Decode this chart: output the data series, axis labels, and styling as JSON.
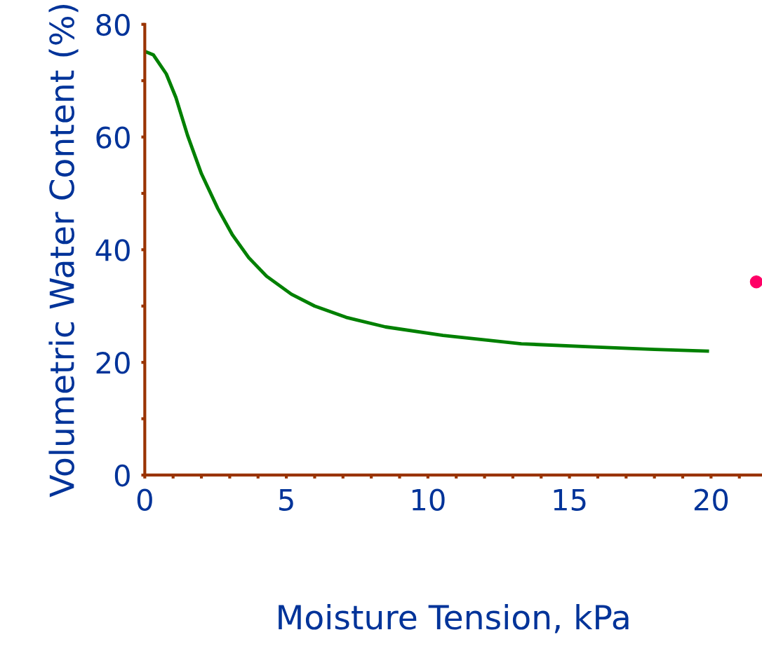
{
  "chart_data": {
    "type": "line",
    "xlabel": "Moisture Tension, kPa",
    "ylabel": "Volumetric Water Content (%)",
    "xlim": [
      0,
      21.8
    ],
    "ylim": [
      0,
      80
    ],
    "xticks": [
      0,
      {
        "value": 1,
        "label": null
      },
      {
        "value": 2,
        "label": null
      },
      {
        "value": 3,
        "label": null
      },
      {
        "value": 4,
        "label": null
      },
      5,
      {
        "value": 6,
        "label": null
      },
      {
        "value": 7,
        "label": null
      },
      {
        "value": 8,
        "label": null
      },
      {
        "value": 9,
        "label": null
      },
      10,
      {
        "value": 11,
        "label": null
      },
      {
        "value": 12,
        "label": null
      },
      {
        "value": 13,
        "label": null
      },
      {
        "value": 14,
        "label": null
      },
      15,
      {
        "value": 16,
        "label": null
      },
      {
        "value": 17,
        "label": null
      },
      {
        "value": 18,
        "label": null
      },
      {
        "value": 19,
        "label": null
      },
      20,
      {
        "value": 21,
        "label": null
      }
    ],
    "yticks": [
      0,
      {
        "value": 10,
        "label": null
      },
      20,
      {
        "value": 30,
        "label": null
      },
      40,
      {
        "value": 50,
        "label": null
      },
      60,
      {
        "value": 70,
        "label": null
      },
      80
    ],
    "grid": false,
    "legend": false,
    "series": [
      {
        "color": "#008000",
        "x": [
          0,
          0.3,
          0.76,
          1.1,
          1.51,
          2.0,
          2.58,
          3.1,
          3.67,
          4.3,
          5.18,
          6.0,
          7.11,
          8.5,
          10.53,
          13.3,
          16.0,
          18.0,
          19.93
        ],
        "values": [
          75.2,
          74.6,
          71.2,
          67.0,
          60.3,
          53.5,
          47.3,
          42.6,
          38.6,
          35.3,
          32.1,
          30.0,
          28.0,
          26.3,
          24.8,
          23.3,
          22.7,
          22.3,
          22.0
        ]
      },
      {
        "type": "scatter",
        "color": "#ff0066",
        "x": [
          21.6
        ],
        "values": [
          34.3
        ]
      }
    ]
  }
}
